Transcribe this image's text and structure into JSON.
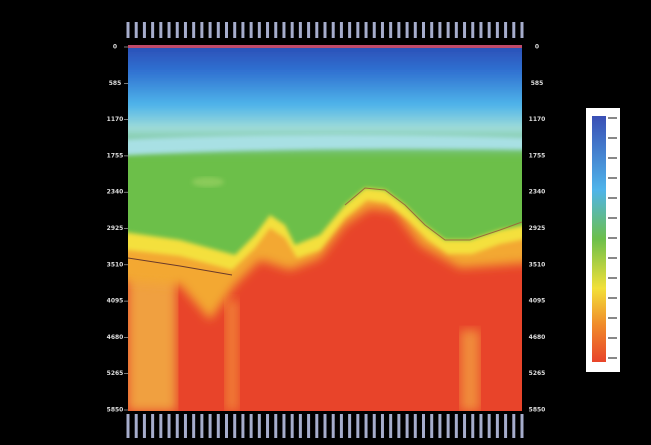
{
  "chart_data": {
    "type": "heatmap",
    "ylim": [
      0,
      5850
    ],
    "yticks": [
      0,
      585,
      1170,
      1755,
      2340,
      2925,
      3510,
      4095,
      4680,
      5265,
      5850
    ]
  }
}
